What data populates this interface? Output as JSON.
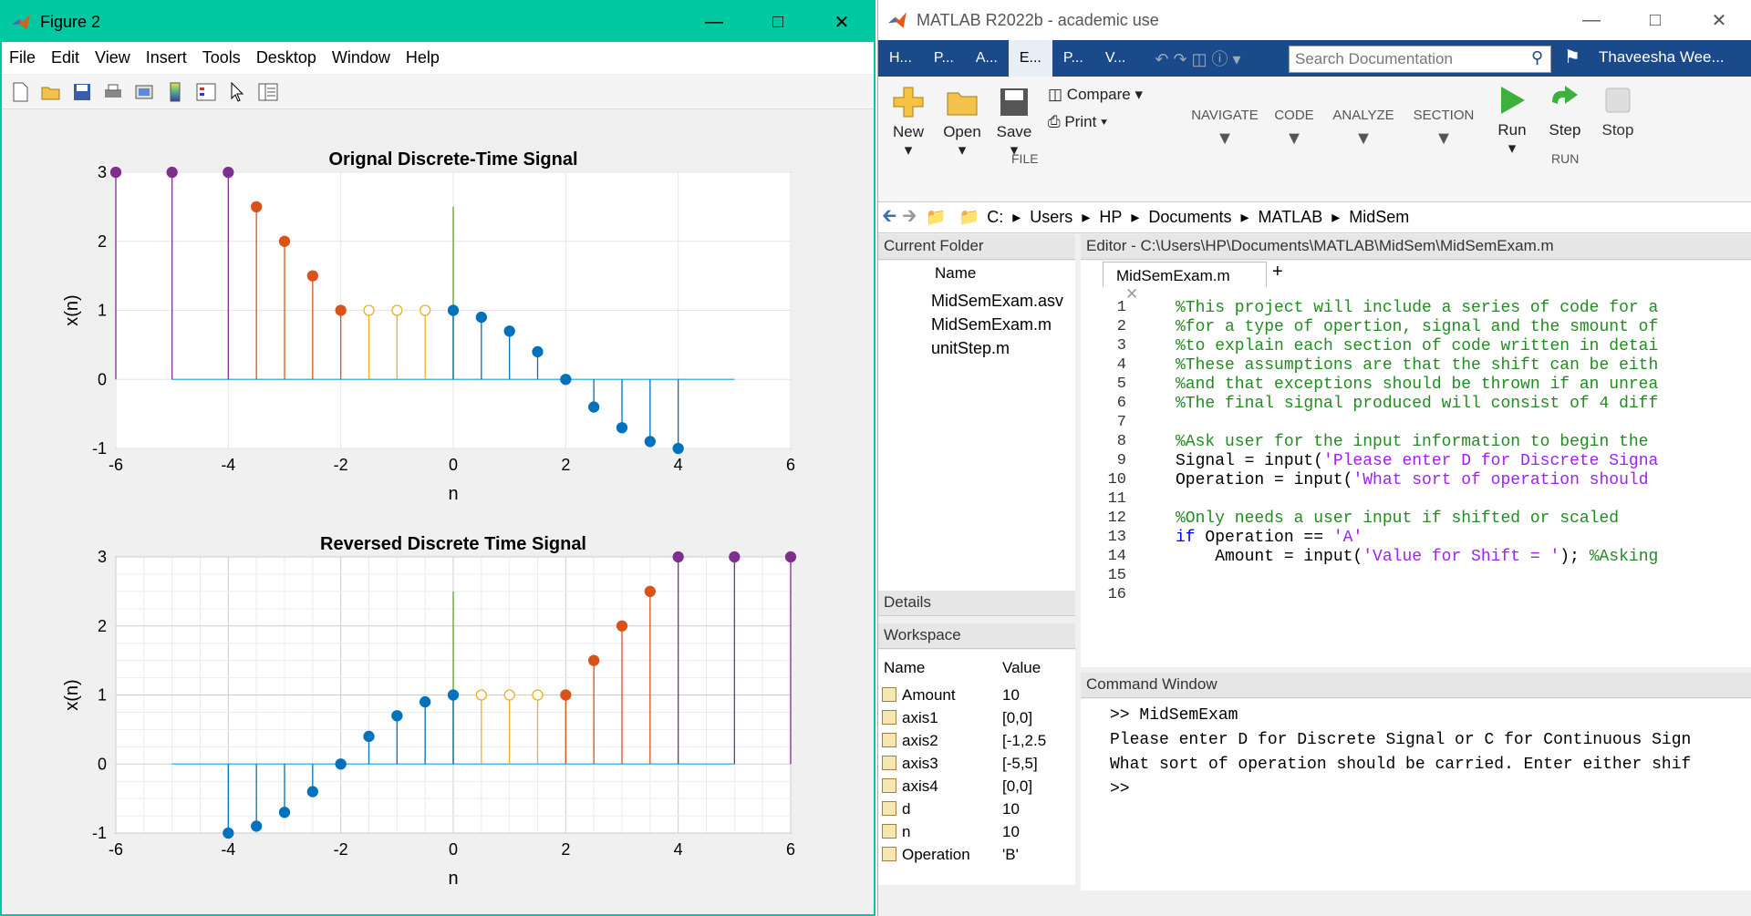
{
  "figure": {
    "title": "Figure 2",
    "menu": [
      "File",
      "Edit",
      "View",
      "Insert",
      "Tools",
      "Desktop",
      "Window",
      "Help"
    ],
    "plot1": {
      "title": "Orignal Discrete-Time Signal",
      "xlabel": "n",
      "ylabel": "x(n)"
    },
    "plot2": {
      "title": "Reversed Discrete Time Signal",
      "xlabel": "n",
      "ylabel": "x(n)"
    }
  },
  "chart_data": [
    {
      "type": "scatter",
      "title": "Orignal Discrete-Time Signal",
      "xlabel": "n",
      "ylabel": "x(n)",
      "xlim": [
        -6,
        6
      ],
      "ylim": [
        -1,
        3
      ],
      "xticks": [
        -6,
        -4,
        -2,
        0,
        2,
        4,
        6
      ],
      "yticks": [
        -1,
        0,
        1,
        2,
        3
      ],
      "grid": false,
      "series": [
        {
          "color": "#7e2f8e",
          "x": [
            -6,
            -5,
            -4
          ],
          "y": [
            3,
            3,
            3
          ],
          "filled": true
        },
        {
          "color": "#d95319",
          "x": [
            -3.5,
            -3,
            -2.5,
            -2
          ],
          "y": [
            2.5,
            2,
            1.5,
            1
          ],
          "filled": true
        },
        {
          "color": "#edb120",
          "x": [
            -1.5,
            -1,
            -0.5
          ],
          "y": [
            1,
            1,
            1
          ],
          "filled": false
        },
        {
          "color": "#0072bd",
          "x": [
            0,
            0.5,
            1,
            1.5,
            2,
            2.5,
            3,
            3.5,
            4
          ],
          "y": [
            1,
            0.9,
            0.7,
            0.4,
            0,
            -0.4,
            -0.7,
            -0.9,
            -1
          ],
          "filled": true
        }
      ]
    },
    {
      "type": "scatter",
      "title": "Reversed Discrete Time Signal",
      "xlabel": "n",
      "ylabel": "x(n)",
      "xlim": [
        -6,
        6
      ],
      "ylim": [
        -1,
        3
      ],
      "xticks": [
        -6,
        -4,
        -2,
        0,
        2,
        4,
        6
      ],
      "yticks": [
        -1,
        0,
        1,
        2,
        3
      ],
      "grid": true,
      "series": [
        {
          "color": "#0072bd",
          "x": [
            -4,
            -3.5,
            -3,
            -2.5,
            -2,
            -1.5,
            -1,
            -0.5,
            0
          ],
          "y": [
            -1,
            -0.9,
            -0.7,
            -0.4,
            0,
            0.4,
            0.7,
            0.9,
            1
          ],
          "filled": true
        },
        {
          "color": "#edb120",
          "x": [
            0.5,
            1,
            1.5
          ],
          "y": [
            1,
            1,
            1
          ],
          "filled": false
        },
        {
          "color": "#d95319",
          "x": [
            2,
            2.5,
            3,
            3.5
          ],
          "y": [
            1,
            1.5,
            2,
            2.5
          ],
          "filled": true
        },
        {
          "color": "#7e2f8e",
          "x": [
            4,
            5,
            6
          ],
          "y": [
            3,
            3,
            3
          ],
          "filled": true
        }
      ]
    }
  ],
  "matlab": {
    "title": "MATLAB R2022b - academic use",
    "tabs": [
      "H...",
      "P...",
      "A...",
      "E...",
      "P...",
      "V..."
    ],
    "search_placeholder": "Search Documentation",
    "user": "Thaveesha Wee...",
    "ribbon": {
      "new": "New",
      "open": "Open",
      "save": "Save",
      "compare": "Compare",
      "print": "Print",
      "navigate": "NAVIGATE",
      "code": "CODE",
      "analyze": "ANALYZE",
      "section": "SECTION",
      "run": "Run",
      "step": "Step",
      "stop": "Stop",
      "file_group": "FILE",
      "run_group": "RUN"
    },
    "path": [
      "C:",
      "Users",
      "HP",
      "Documents",
      "MATLAB",
      "MidSem"
    ],
    "current_folder": {
      "title": "Current Folder",
      "col": "Name",
      "files": [
        "MidSemExam.asv",
        "MidSemExam.m",
        "unitStep.m"
      ]
    },
    "details": "Details",
    "workspace": {
      "title": "Workspace",
      "col_name": "Name",
      "col_value": "Value",
      "rows": [
        [
          "Amount",
          "10"
        ],
        [
          "axis1",
          "[0,0]"
        ],
        [
          "axis2",
          "[-1,2.5"
        ],
        [
          "axis3",
          "[-5,5]"
        ],
        [
          "axis4",
          "[0,0]"
        ],
        [
          "d",
          "10"
        ],
        [
          "n",
          "10"
        ],
        [
          "Operation",
          "'B'"
        ]
      ]
    },
    "editor": {
      "title": "Editor - C:\\Users\\HP\\Documents\\MATLAB\\MidSem\\MidSemExam.m",
      "tab": "MidSemExam.m",
      "lines": [
        "%This project will include a series of code for a",
        "%for a type of opertion, signal and the smount of",
        "%to explain each section of code written in detai",
        "%These assumptions are that the shift can be eith",
        "%and that exceptions should be thrown if an unrea",
        "%The final signal produced will consist of 4 diff",
        "",
        "%Ask user for the input information to begin the",
        "Signal = input('Please enter D for Discrete Signa",
        "Operation = input('What sort of operation should",
        "",
        "%Only needs a user input if shifted or scaled",
        "if Operation == 'A'",
        "    Amount = input('Value for Shift = '); %Asking",
        "",
        ""
      ]
    },
    "command": {
      "title": "Command Window",
      "lines": [
        ">> MidSemExam",
        "Please enter D for Discrete Signal or C for Continuous Sign",
        "What sort of operation should be carried. Enter either shif",
        ">>"
      ]
    }
  }
}
